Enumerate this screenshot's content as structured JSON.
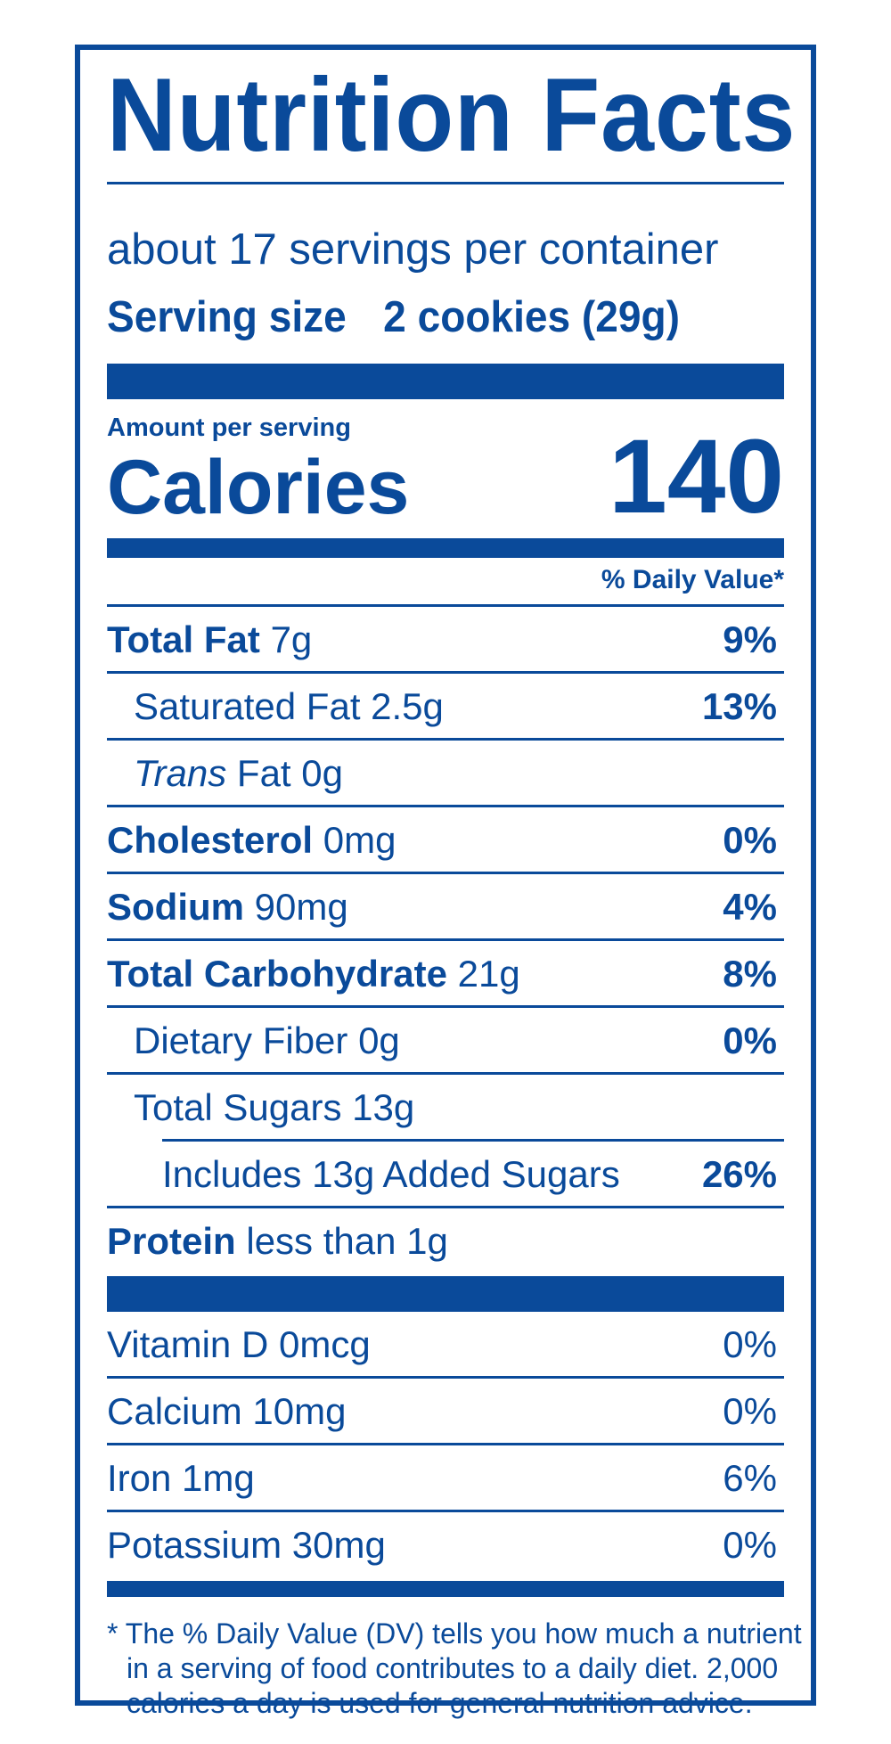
{
  "title": "Nutrition Facts",
  "servings_per_container": "about 17 servings per container",
  "serving_size": {
    "label": "Serving size",
    "value": "2 cookies (29g)"
  },
  "amount_per_serving": "Amount per serving",
  "calories": {
    "label": "Calories",
    "value": "140"
  },
  "daily_value_header": "% Daily Value*",
  "nutrients": {
    "total_fat": {
      "name": "Total Fat",
      "amount": "7g",
      "dv": "9%"
    },
    "saturated_fat": {
      "name": "Saturated Fat",
      "amount": "2.5g",
      "dv": "13%"
    },
    "trans_fat": {
      "name_italic": "Trans",
      "name_rest": "Fat",
      "amount": "0g"
    },
    "cholesterol": {
      "name": "Cholesterol",
      "amount": "0mg",
      "dv": "0%"
    },
    "sodium": {
      "name": "Sodium",
      "amount": "90mg",
      "dv": "4%"
    },
    "total_carbohydrate": {
      "name": "Total Carbohydrate",
      "amount": "21g",
      "dv": "8%"
    },
    "dietary_fiber": {
      "name": "Dietary Fiber",
      "amount": "0g",
      "dv": "0%"
    },
    "total_sugars": {
      "name": "Total Sugars",
      "amount": "13g"
    },
    "added_sugars": {
      "text": "Includes 13g Added Sugars",
      "dv": "26%"
    },
    "protein": {
      "name": "Protein",
      "amount": "less than 1g"
    }
  },
  "vitamins": {
    "vitamin_d": {
      "name": "Vitamin D",
      "amount": "0mcg",
      "dv": "0%"
    },
    "calcium": {
      "name": "Calcium",
      "amount": "10mg",
      "dv": "0%"
    },
    "iron": {
      "name": "Iron",
      "amount": "1mg",
      "dv": "6%"
    },
    "potassium": {
      "name": "Potassium",
      "amount": "30mg",
      "dv": "0%"
    }
  },
  "footnote": {
    "line1": "* The % Daily Value (DV) tells you how much a nutrient",
    "line2": "in a serving of food contributes to a daily diet. 2,000",
    "line3": "calories a day is used for general nutrition advice."
  },
  "colors": {
    "label_blue": "#0a4a9a",
    "background": "#ffffff"
  }
}
